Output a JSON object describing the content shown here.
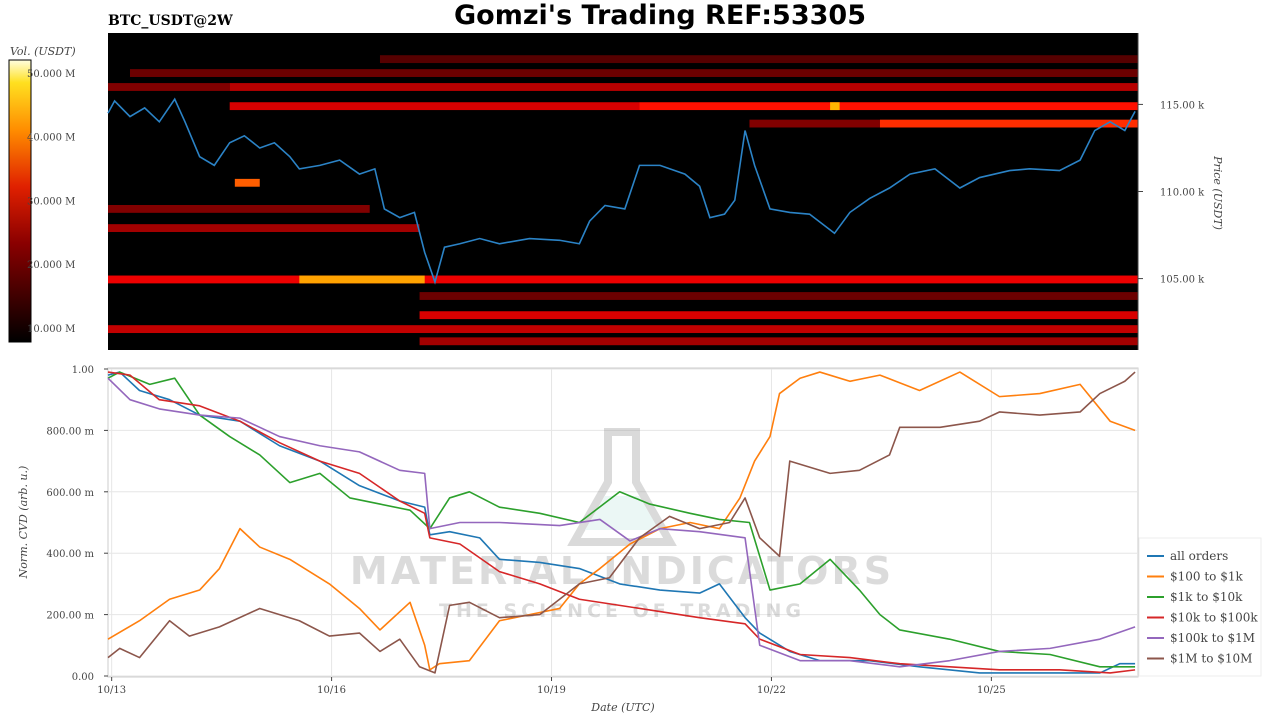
{
  "chart_data": [
    {
      "type": "heatmap",
      "title": "Gomzi's Trading REF:53305",
      "subtitle": "BTC_USDT@2W",
      "ylabel": "Price (USDT)",
      "ylim": [
        100.9,
        119.1
      ],
      "xlim": [
        -0.05,
        14.0
      ],
      "y_ticks": [
        {
          "v": 105,
          "label": "105.00 k"
        },
        {
          "v": 110,
          "label": "110.00 k"
        },
        {
          "v": 115,
          "label": "115.00 k"
        }
      ],
      "colorbar": {
        "label": "Vol. (USDT)",
        "range": [
          7.8,
          52.0
        ],
        "ticks": [
          {
            "v": 50,
            "label": "50.000 M"
          },
          {
            "v": 40,
            "label": "40.000 M"
          },
          {
            "v": 30,
            "label": "30.000 M"
          },
          {
            "v": 20,
            "label": "20.000 M"
          },
          {
            "v": 10,
            "label": "10.000 M"
          }
        ]
      },
      "bands": [
        {
          "price": 117.6,
          "from": 3.66,
          "to": 14.0,
          "vol": 8
        },
        {
          "price": 116.8,
          "from": 0.25,
          "to": 14.0,
          "vol": 10
        },
        {
          "price": 116.0,
          "from": -0.05,
          "to": 1.61,
          "vol": 12
        },
        {
          "price": 116.0,
          "from": 1.61,
          "to": 14.0,
          "vol": 17
        },
        {
          "price": 114.9,
          "from": 1.61,
          "to": 7.2,
          "vol": 20
        },
        {
          "price": 114.9,
          "from": 7.2,
          "to": 14.0,
          "vol": 25
        },
        {
          "price": 114.9,
          "from": 9.8,
          "to": 9.93,
          "vol": 42
        },
        {
          "price": 113.9,
          "from": 8.7,
          "to": 10.48,
          "vol": 12
        },
        {
          "price": 113.9,
          "from": 10.48,
          "to": 14.0,
          "vol": 28
        },
        {
          "price": 110.5,
          "from": 1.68,
          "to": 2.02,
          "vol": 33
        },
        {
          "price": 109.0,
          "from": -0.05,
          "to": 3.52,
          "vol": 12
        },
        {
          "price": 107.9,
          "from": -0.05,
          "to": 4.2,
          "vol": 15
        },
        {
          "price": 104.95,
          "from": -0.05,
          "to": 14.0,
          "vol": 22
        },
        {
          "price": 104.95,
          "from": 2.56,
          "to": 4.27,
          "vol": 40
        },
        {
          "price": 104.0,
          "from": 4.2,
          "to": 14.0,
          "vol": 10
        },
        {
          "price": 102.9,
          "from": 4.2,
          "to": 14.0,
          "vol": 20
        },
        {
          "price": 102.1,
          "from": -0.05,
          "to": 14.0,
          "vol": 18
        },
        {
          "price": 101.4,
          "from": 4.2,
          "to": 14.0,
          "vol": 15
        }
      ],
      "price_line": {
        "color": "#2b83c6",
        "x": [
          -0.05,
          0.04,
          0.25,
          0.45,
          0.65,
          0.86,
          1.0,
          1.2,
          1.4,
          1.61,
          1.81,
          2.02,
          2.22,
          2.43,
          2.56,
          2.84,
          3.11,
          3.38,
          3.59,
          3.72,
          3.93,
          4.13,
          4.27,
          4.41,
          4.54,
          4.75,
          5.02,
          5.29,
          5.7,
          6.11,
          6.38,
          6.52,
          6.73,
          7.0,
          7.2,
          7.48,
          7.82,
          8.02,
          8.16,
          8.36,
          8.5,
          8.64,
          8.77,
          8.98,
          9.25,
          9.52,
          9.86,
          10.07,
          10.34,
          10.61,
          10.89,
          11.23,
          11.57,
          11.84,
          12.25,
          12.52,
          12.93,
          13.21,
          13.41,
          13.62,
          13.82,
          13.96
        ],
        "y": [
          114.5,
          115.2,
          114.3,
          114.8,
          114.0,
          115.3,
          114.0,
          112,
          111.5,
          112.8,
          113.2,
          112.5,
          112.8,
          112,
          111.3,
          111.5,
          111.8,
          111,
          111.3,
          109,
          108.5,
          108.8,
          106.5,
          104.8,
          106.8,
          107,
          107.3,
          107,
          107.3,
          107.2,
          107,
          108.3,
          109.2,
          109,
          111.5,
          111.5,
          111,
          110.3,
          108.5,
          108.7,
          109.5,
          113.5,
          111.5,
          109,
          108.8,
          108.7,
          107.6,
          108.8,
          109.6,
          110.2,
          111,
          111.3,
          110.2,
          110.8,
          111.2,
          111.3,
          111.2,
          111.8,
          113.5,
          114,
          113.5,
          114.6
        ]
      }
    },
    {
      "type": "line",
      "xlabel": "Date (UTC)",
      "ylabel": "Norm. CVD (arb. u.)",
      "ylim": [
        0,
        1
      ],
      "xlim": [
        -0.05,
        14.0
      ],
      "x_ticks": [
        {
          "v": 0,
          "label": "10/13"
        },
        {
          "v": 3,
          "label": "10/16"
        },
        {
          "v": 6,
          "label": "10/19"
        },
        {
          "v": 9,
          "label": "10/22"
        },
        {
          "v": 12,
          "label": "10/25"
        }
      ],
      "y_ticks": [
        {
          "v": 0,
          "label": "0.00"
        },
        {
          "v": 0.2,
          "label": "200.00 m"
        },
        {
          "v": 0.4,
          "label": "400.00 m"
        },
        {
          "v": 0.6,
          "label": "600.00 m"
        },
        {
          "v": 0.8,
          "label": "800.00 m"
        },
        {
          "v": 1.0,
          "label": "1.00"
        }
      ],
      "grid": true,
      "legend": "right",
      "series": [
        {
          "name": "all orders",
          "color": "#1f77b4",
          "x": [
            -0.05,
            0.11,
            0.38,
            0.79,
            1.2,
            1.75,
            2.29,
            2.84,
            3.38,
            3.93,
            4.27,
            4.34,
            4.61,
            5.02,
            5.29,
            5.84,
            6.38,
            6.93,
            7.48,
            8.02,
            8.29,
            8.64,
            8.84,
            9.25,
            9.66,
            10.34,
            11.02,
            11.84,
            12.66,
            13.48,
            13.75,
            13.96
          ],
          "y": [
            0.98,
            0.99,
            0.93,
            0.9,
            0.85,
            0.83,
            0.75,
            0.7,
            0.62,
            0.57,
            0.55,
            0.46,
            0.47,
            0.45,
            0.38,
            0.37,
            0.35,
            0.3,
            0.28,
            0.27,
            0.3,
            0.19,
            0.14,
            0.08,
            0.05,
            0.05,
            0.03,
            0.01,
            0.01,
            0.01,
            0.04,
            0.04
          ]
        },
        {
          "name": "$100 to $1k",
          "color": "#ff7f0e",
          "x": [
            -0.05,
            0.38,
            0.79,
            1.2,
            1.47,
            1.75,
            2.02,
            2.43,
            2.97,
            3.38,
            3.66,
            4.07,
            4.27,
            4.34,
            4.47,
            4.88,
            5.29,
            5.7,
            6.11,
            6.38,
            6.66,
            7.07,
            7.48,
            7.89,
            8.29,
            8.57,
            8.77,
            8.98,
            9.11,
            9.39,
            9.66,
            10.07,
            10.48,
            11.02,
            11.57,
            12.11,
            12.66,
            13.21,
            13.62,
            13.96
          ],
          "y": [
            0.12,
            0.18,
            0.25,
            0.28,
            0.35,
            0.48,
            0.42,
            0.38,
            0.3,
            0.22,
            0.15,
            0.24,
            0.1,
            0.02,
            0.04,
            0.05,
            0.18,
            0.2,
            0.22,
            0.3,
            0.35,
            0.43,
            0.48,
            0.5,
            0.48,
            0.58,
            0.7,
            0.78,
            0.92,
            0.97,
            0.99,
            0.96,
            0.98,
            0.93,
            0.99,
            0.91,
            0.92,
            0.95,
            0.83,
            0.8
          ]
        },
        {
          "name": "$1k to $10k",
          "color": "#2ca02c",
          "x": [
            -0.05,
            0.11,
            0.52,
            0.86,
            1.2,
            1.61,
            2.02,
            2.43,
            2.84,
            3.25,
            3.66,
            4.07,
            4.34,
            4.61,
            4.88,
            5.29,
            5.84,
            6.38,
            6.93,
            7.34,
            7.89,
            8.29,
            8.7,
            8.98,
            9.39,
            9.8,
            10.2,
            10.48,
            10.75,
            11.43,
            12.11,
            12.8,
            13.48,
            13.75,
            13.96
          ],
          "y": [
            0.97,
            0.99,
            0.95,
            0.97,
            0.85,
            0.78,
            0.72,
            0.63,
            0.66,
            0.58,
            0.56,
            0.54,
            0.48,
            0.58,
            0.6,
            0.55,
            0.53,
            0.5,
            0.6,
            0.56,
            0.53,
            0.51,
            0.5,
            0.28,
            0.3,
            0.38,
            0.28,
            0.2,
            0.15,
            0.12,
            0.08,
            0.07,
            0.03,
            0.03,
            0.03
          ]
        },
        {
          "name": "$10k to $100k",
          "color": "#d62728",
          "x": [
            -0.05,
            0.25,
            0.65,
            1.2,
            1.75,
            2.29,
            2.84,
            3.38,
            3.93,
            4.27,
            4.34,
            4.75,
            5.29,
            5.84,
            6.38,
            6.93,
            7.48,
            8.02,
            8.64,
            8.84,
            9.39,
            10.07,
            10.75,
            11.43,
            12.11,
            12.93,
            13.62,
            13.96
          ],
          "y": [
            0.99,
            0.98,
            0.9,
            0.88,
            0.83,
            0.76,
            0.7,
            0.66,
            0.57,
            0.53,
            0.45,
            0.43,
            0.34,
            0.3,
            0.25,
            0.23,
            0.21,
            0.19,
            0.17,
            0.12,
            0.07,
            0.06,
            0.04,
            0.03,
            0.02,
            0.02,
            0.01,
            0.02
          ]
        },
        {
          "name": "$100k to $1M",
          "color": "#9467bd",
          "x": [
            -0.05,
            0.25,
            0.65,
            1.2,
            1.75,
            2.29,
            2.84,
            3.38,
            3.93,
            4.27,
            4.34,
            4.75,
            5.29,
            6.11,
            6.66,
            7.07,
            7.48,
            8.02,
            8.64,
            8.84,
            9.39,
            10.07,
            10.75,
            11.43,
            12.11,
            12.8,
            13.48,
            13.96
          ],
          "y": [
            0.97,
            0.9,
            0.87,
            0.85,
            0.84,
            0.78,
            0.75,
            0.73,
            0.67,
            0.66,
            0.48,
            0.5,
            0.5,
            0.49,
            0.51,
            0.44,
            0.48,
            0.47,
            0.45,
            0.1,
            0.05,
            0.05,
            0.03,
            0.05,
            0.08,
            0.09,
            0.12,
            0.16
          ]
        },
        {
          "name": "$1M to $10M",
          "color": "#8c564b",
          "x": [
            -0.05,
            0.11,
            0.38,
            0.79,
            1.06,
            1.47,
            2.02,
            2.56,
            2.97,
            3.38,
            3.66,
            3.93,
            4.2,
            4.41,
            4.61,
            4.88,
            5.29,
            5.84,
            6.38,
            6.79,
            7.2,
            7.61,
            8.02,
            8.43,
            8.64,
            8.84,
            9.11,
            9.25,
            9.8,
            10.2,
            10.61,
            10.75,
            11.3,
            11.84,
            12.11,
            12.66,
            13.21,
            13.48,
            13.82,
            13.96
          ],
          "y": [
            0.06,
            0.09,
            0.06,
            0.18,
            0.13,
            0.16,
            0.22,
            0.18,
            0.13,
            0.14,
            0.08,
            0.12,
            0.03,
            0.01,
            0.23,
            0.24,
            0.19,
            0.2,
            0.3,
            0.32,
            0.45,
            0.52,
            0.48,
            0.5,
            0.58,
            0.45,
            0.39,
            0.7,
            0.66,
            0.67,
            0.72,
            0.81,
            0.81,
            0.83,
            0.86,
            0.85,
            0.86,
            0.92,
            0.96,
            0.99
          ]
        }
      ]
    }
  ],
  "watermark": {
    "brand": "MATERIAL INDICATORS",
    "tagline": "THE SCIENCE OF TRADING"
  }
}
